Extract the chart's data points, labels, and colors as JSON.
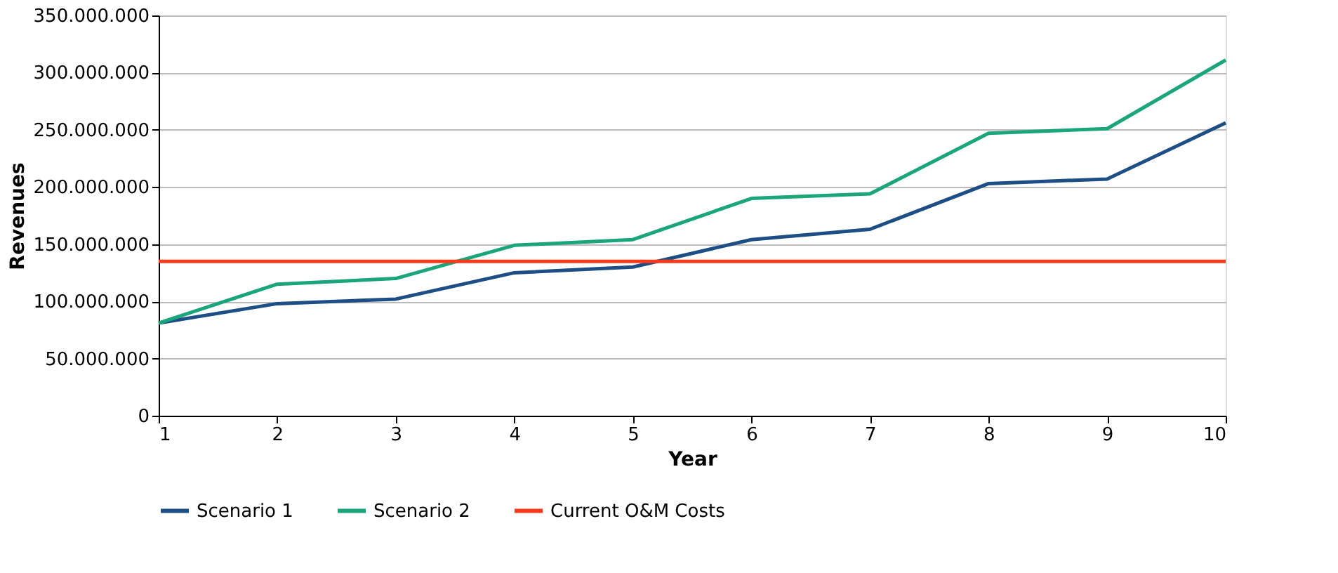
{
  "chart_data": {
    "type": "line",
    "xlabel": "Year",
    "ylabel": "Revenues",
    "x": [
      1,
      2,
      3,
      4,
      5,
      6,
      7,
      8,
      9,
      10
    ],
    "series": [
      {
        "name": "Scenario 1",
        "color": "#1d4f86",
        "values": [
          81000000,
          98000000,
          102000000,
          125000000,
          130000000,
          154000000,
          163000000,
          203000000,
          207000000,
          256000000
        ]
      },
      {
        "name": "Scenario 2",
        "color": "#1aa57a",
        "values": [
          81000000,
          115000000,
          120000000,
          149000000,
          154000000,
          190000000,
          194000000,
          247000000,
          251000000,
          311000000
        ]
      },
      {
        "name": "Current O&M Costs",
        "color": "#fb3a1c",
        "values": [
          135000000,
          135000000,
          135000000,
          135000000,
          135000000,
          135000000,
          135000000,
          135000000,
          135000000,
          135000000
        ]
      }
    ],
    "xlim": [
      1,
      10
    ],
    "xticks": [
      1,
      2,
      3,
      4,
      5,
      6,
      7,
      8,
      9,
      10
    ],
    "ylim": [
      0,
      350000000
    ],
    "yticks": [
      0,
      {
        "value": 50000000,
        "label": "50.000.000"
      },
      {
        "value": 100000000,
        "label": "100.000.000"
      },
      {
        "value": 150000000,
        "label": "150.000.000"
      },
      {
        "value": 200000000,
        "label": "200.000.000"
      },
      {
        "value": 250000000,
        "label": "250.000.000"
      },
      {
        "value": 300000000,
        "label": "300.000.000"
      },
      {
        "value": 350000000,
        "label": "350.000.000"
      }
    ],
    "grid": "y",
    "legend": "bottom",
    "marker": "none",
    "line_style": "solid"
  }
}
